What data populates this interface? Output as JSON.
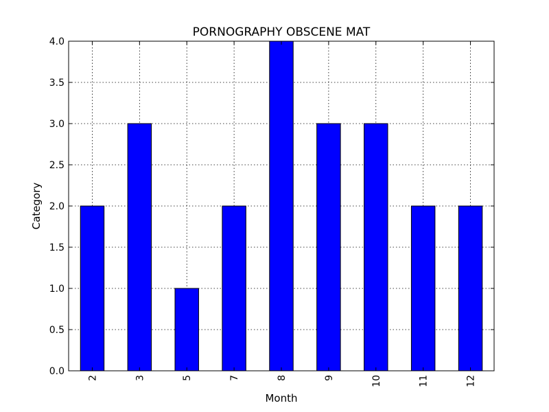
{
  "chart_data": {
    "type": "bar",
    "title": "PORNOGRAPHY OBSCENE MAT",
    "xlabel": "Month",
    "ylabel": "Category",
    "categories": [
      "2",
      "3",
      "5",
      "7",
      "8",
      "9",
      "10",
      "11",
      "12"
    ],
    "values": [
      2,
      3,
      1,
      2,
      4,
      3,
      3,
      2,
      2
    ],
    "ylim": [
      0,
      4
    ],
    "yticks": [
      "0.0",
      "0.5",
      "1.0",
      "1.5",
      "2.0",
      "2.5",
      "3.0",
      "3.5",
      "4.0"
    ],
    "grid": true,
    "bar_color": "#0000ff",
    "x_tick_rotation": "vertical"
  }
}
